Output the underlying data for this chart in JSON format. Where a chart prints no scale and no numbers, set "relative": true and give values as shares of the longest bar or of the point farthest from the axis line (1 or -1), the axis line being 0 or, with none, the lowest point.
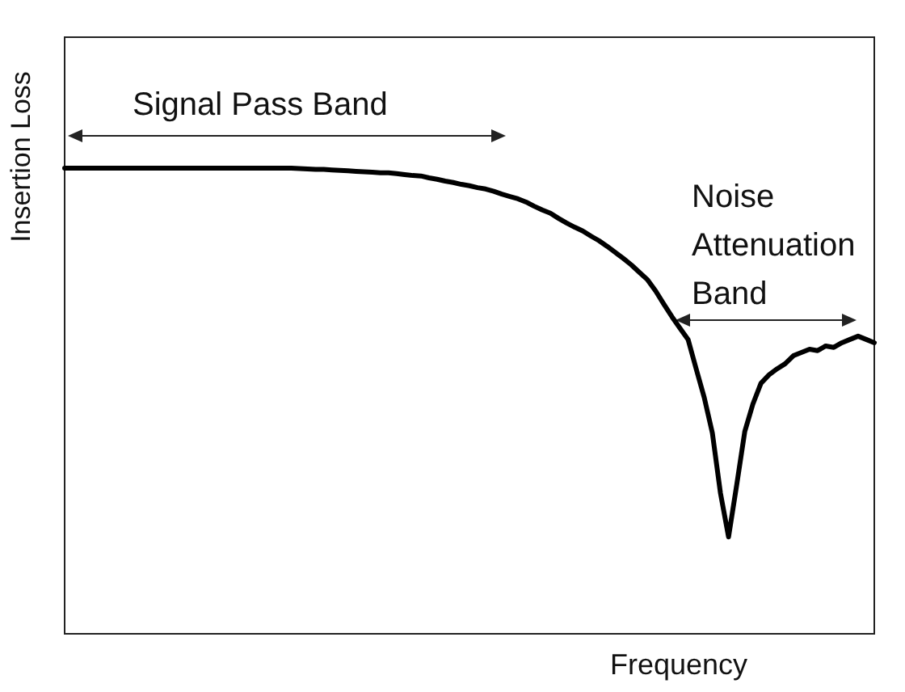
{
  "chart_data": {
    "type": "line",
    "xlabel": "Frequency",
    "ylabel": "Insertion Loss",
    "annotations": [
      "Signal Pass Band",
      "Noise Attenuation Band"
    ],
    "relative": true,
    "categories": [
      null,
      null,
      null,
      null,
      null,
      null,
      null,
      null,
      null,
      null,
      null,
      null,
      null,
      null,
      null,
      null,
      null,
      null,
      null,
      null,
      null,
      null,
      null,
      null,
      null,
      null,
      null,
      null,
      null,
      null,
      null,
      null,
      null,
      null,
      null,
      null,
      null,
      null,
      null,
      null,
      null,
      null,
      null,
      null,
      null,
      null,
      null,
      null,
      null,
      null,
      null,
      null,
      null,
      null,
      null,
      null,
      null,
      null,
      null,
      null,
      null,
      null,
      null,
      null,
      null,
      null,
      null,
      null,
      null,
      null,
      null,
      null,
      null,
      null,
      null,
      null,
      null,
      null,
      null,
      null,
      null,
      null,
      null,
      null,
      null,
      null,
      null,
      null,
      null,
      null,
      null,
      null,
      null,
      null,
      null,
      null,
      null,
      null,
      null,
      null,
      null
    ],
    "color": "#000000",
    "values": [
      1,
      1,
      1,
      1,
      1,
      1,
      1,
      1,
      1,
      1,
      1,
      1,
      1,
      1,
      1,
      1,
      1,
      1,
      1,
      1,
      1,
      1,
      1,
      1,
      1,
      1,
      1,
      1,
      1,
      0.999,
      0.998,
      0.997,
      0.997,
      0.996,
      0.995,
      0.994,
      0.993,
      0.992,
      0.991,
      0.99,
      0.99,
      0.988,
      0.986,
      0.984,
      0.983,
      0.979,
      0.976,
      0.972,
      0.969,
      0.965,
      0.962,
      0.958,
      0.955,
      0.95,
      0.944,
      0.939,
      0.934,
      0.927,
      0.918,
      0.91,
      0.903,
      0.892,
      0.882,
      0.873,
      0.865,
      0.854,
      0.844,
      0.832,
      0.819,
      0.806,
      0.792,
      0.776,
      0.76,
      0.736,
      0.708,
      0.681,
      0.656,
      0.632,
      0.569,
      0.507,
      0.431,
      0.302,
      0.208,
      0.319,
      0.434,
      0.493,
      0.538,
      0.556,
      0.569,
      0.58,
      0.597,
      0.604,
      0.611,
      0.608,
      0.618,
      0.615,
      0.625,
      0.632,
      0.639,
      0.632,
      0.625
    ]
  }
}
